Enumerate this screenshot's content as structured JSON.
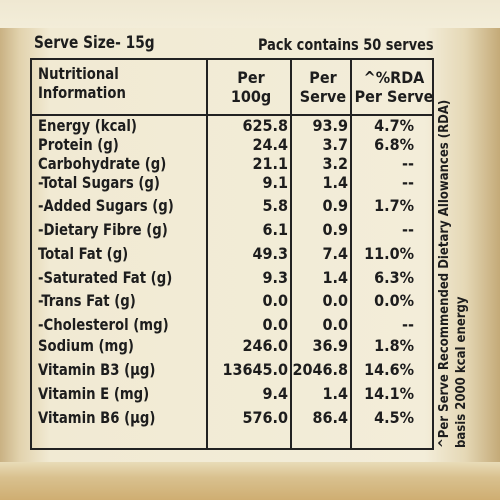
{
  "label": {
    "serve_size": "Serve Size- 15g",
    "pack_contains": "Pack contains 50 serves",
    "headers": {
      "info_line1": "Nutritional",
      "info_line2": "Information",
      "per100_line1": "Per",
      "per100_line2": "100g",
      "perserve_line1": "Per",
      "perserve_line2": "Serve",
      "rda_line1": "^%RDA",
      "rda_line2": "Per Serve"
    },
    "rows": [
      {
        "nutrient": "Energy (kcal)",
        "per_100g": "625.8",
        "per_serve": "93.9",
        "rda": "4.7%"
      },
      {
        "nutrient": "Protein (g)",
        "per_100g": "24.4",
        "per_serve": "3.7",
        "rda": "6.8%"
      },
      {
        "nutrient": "Carbohydrate (g)",
        "per_100g": "21.1",
        "per_serve": "3.2",
        "rda": "--"
      },
      {
        "nutrient": "-Total Sugars (g)",
        "per_100g": "9.1",
        "per_serve": "1.4",
        "rda": "--"
      },
      {
        "nutrient": "-Added Sugars (g)",
        "per_100g": "5.8",
        "per_serve": "0.9",
        "rda": "1.7%"
      },
      {
        "nutrient": "-Dietary Fibre (g)",
        "per_100g": "6.1",
        "per_serve": "0.9",
        "rda": "--"
      },
      {
        "nutrient": "Total Fat (g)",
        "per_100g": "49.3",
        "per_serve": "7.4",
        "rda": "11.0%"
      },
      {
        "nutrient": "-Saturated Fat (g)",
        "per_100g": "9.3",
        "per_serve": "1.4",
        "rda": "6.3%"
      },
      {
        "nutrient": "-Trans Fat (g)",
        "per_100g": "0.0",
        "per_serve": "0.0",
        "rda": "0.0%"
      },
      {
        "nutrient": "-Cholesterol (mg)",
        "per_100g": "0.0",
        "per_serve": "0.0",
        "rda": "--"
      },
      {
        "nutrient": "Sodium (mg)",
        "per_100g": "246.0",
        "per_serve": "36.9",
        "rda": "1.8%"
      },
      {
        "nutrient": "Vitamin B3 (µg)",
        "per_100g": "13645.0",
        "per_serve": "2046.8",
        "rda": "14.6%"
      },
      {
        "nutrient": "Vitamin E (mg)",
        "per_100g": "9.4",
        "per_serve": "1.4",
        "rda": "14.1%"
      },
      {
        "nutrient": "Vitamin B6 (µg)",
        "per_100g": "576.0",
        "per_serve": "86.4",
        "rda": "4.5%"
      }
    ],
    "footnote_line1": "^Per Serve Recommended Dietary Allowances (RDA)",
    "footnote_line2": "basis 2000 kcal energy"
  }
}
